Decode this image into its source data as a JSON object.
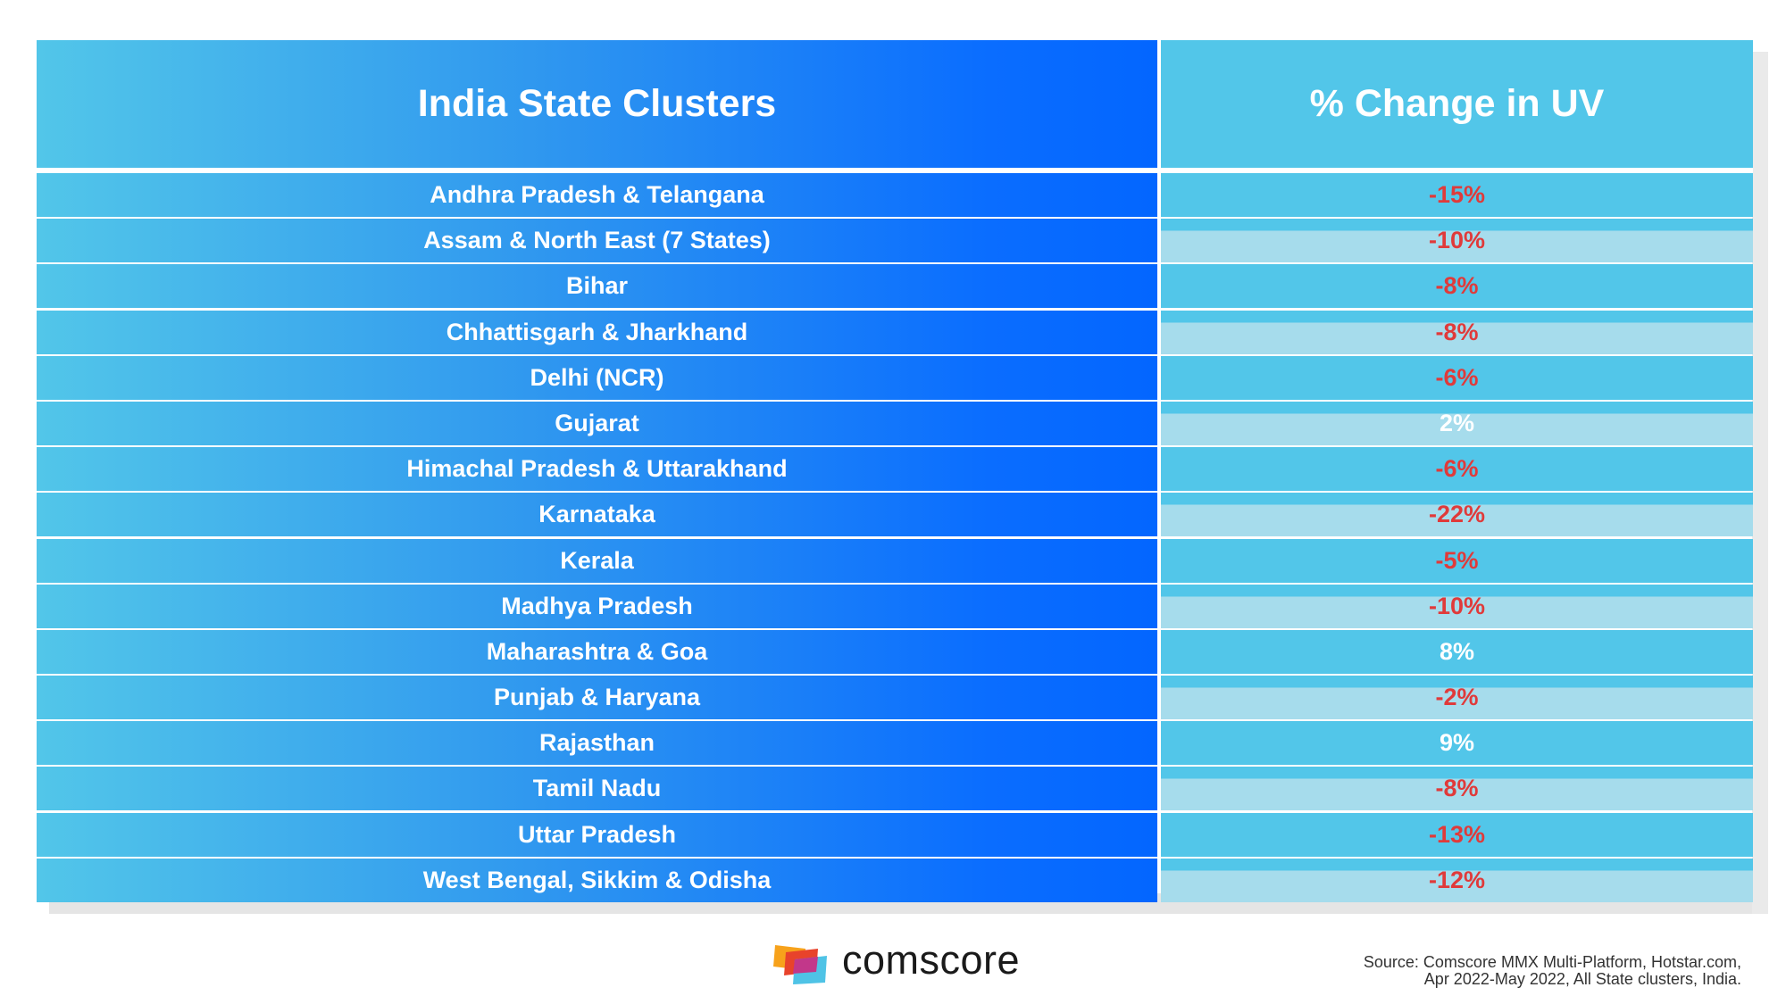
{
  "chart_data": {
    "type": "table",
    "columns": [
      "India State Clusters",
      "% Change in UV"
    ],
    "rows": [
      {
        "state": "Andhra Pradesh & Telangana",
        "value": "-15%"
      },
      {
        "state": "Assam & North East (7 States)",
        "value": "-10%"
      },
      {
        "state": "Bihar",
        "value": "-8%"
      },
      {
        "state": "Chhattisgarh & Jharkhand",
        "value": "-8%"
      },
      {
        "state": "Delhi (NCR)",
        "value": "-6%"
      },
      {
        "state": "Gujarat",
        "value": "2%"
      },
      {
        "state": "Himachal Pradesh & Uttarakhand",
        "value": "-6%"
      },
      {
        "state": "Karnataka",
        "value": "-22%"
      },
      {
        "state": "Kerala",
        "value": "-5%"
      },
      {
        "state": "Madhya Pradesh",
        "value": "-10%"
      },
      {
        "state": "Maharashtra & Goa",
        "value": "8%"
      },
      {
        "state": "Punjab & Haryana",
        "value": "-2%"
      },
      {
        "state": "Rajasthan",
        "value": "9%"
      },
      {
        "state": "Tamil Nadu",
        "value": "-8%"
      },
      {
        "state": "Uttar Pradesh",
        "value": "-13%"
      },
      {
        "state": "West Bengal, Sikkim & Odisha",
        "value": "-12%"
      }
    ]
  },
  "colors": {
    "negative": "#e03a3a",
    "positive": "#ffffff",
    "header_light": "#52c6e9",
    "header_dark": "#0366ff"
  },
  "footer": {
    "brand": "comscore",
    "logo_icon": "comscore-logo-icon",
    "source_line1": "Source: Comscore MMX Multi-Platform, Hotstar.com,",
    "source_line2": "Apr 2022-May 2022, All State clusters, India."
  }
}
